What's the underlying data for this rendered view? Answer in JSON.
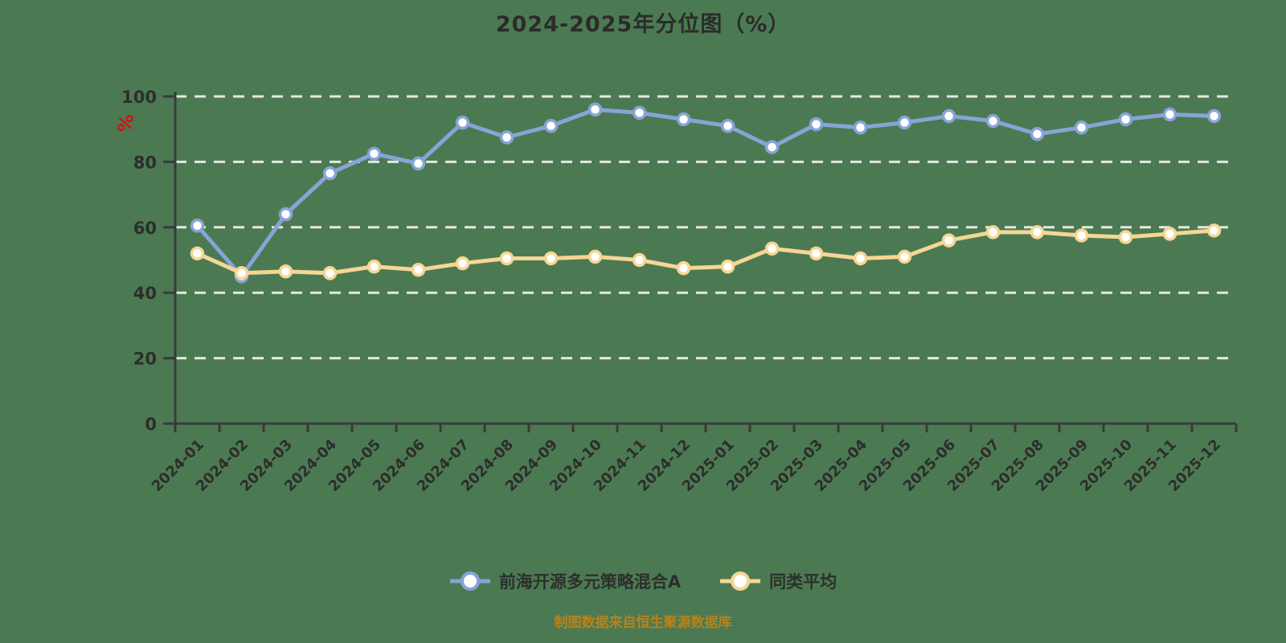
{
  "footer_note": "制图数据来自恒生聚源数据库",
  "colors": {
    "background": "#4b7a52",
    "grid": "#e7e7e3",
    "axis": "#3a3a3a",
    "tick_label": "#2d2d2d",
    "title": "#2b2b2b",
    "footer": "#b8821c",
    "unit_label": "#d60f0f",
    "series_fund": "#87a4d7",
    "series_average": "#f6d694",
    "marker_fill": "#ffffff"
  },
  "chart_data": {
    "type": "line",
    "title": "2024-2025年分位图（%）",
    "ylabel": "%",
    "xlabel": "",
    "ylim": [
      0,
      100
    ],
    "yticks": [
      0,
      20,
      40,
      60,
      80,
      100
    ],
    "grid": "horizontal-dashed-white",
    "legend_position": "bottom",
    "x_label_rotation": 45,
    "categories": [
      "2024-01",
      "2024-02",
      "2024-03",
      "2024-04",
      "2024-05",
      "2024-06",
      "2024-07",
      "2024-08",
      "2024-09",
      "2024-10",
      "2024-11",
      "2024-12",
      "2025-01",
      "2025-02",
      "2025-03",
      "2025-04",
      "2025-05",
      "2025-06",
      "2025-07",
      "2025-08",
      "2025-09",
      "2025-10",
      "2025-11",
      "2025-12"
    ],
    "series": [
      {
        "name": "前海开源多元策略混合A",
        "color": "#87a4d7",
        "marker": "circle",
        "values": [
          60.5,
          45,
          64,
          76.5,
          82.5,
          79.5,
          92,
          87.5,
          91,
          96,
          95,
          93,
          91,
          84.5,
          91.5,
          90.5,
          92,
          94,
          92.5,
          88.5,
          90.5,
          93,
          94.5,
          94
        ]
      },
      {
        "name": "同类平均",
        "color": "#f6d694",
        "marker": "circle",
        "values": [
          52,
          46,
          46.5,
          46,
          48,
          47,
          49,
          50.5,
          50.5,
          51,
          50,
          47.5,
          48,
          53.5,
          52,
          50.5,
          51,
          56,
          58.5,
          58.5,
          57.5,
          57,
          58,
          59
        ]
      }
    ]
  }
}
